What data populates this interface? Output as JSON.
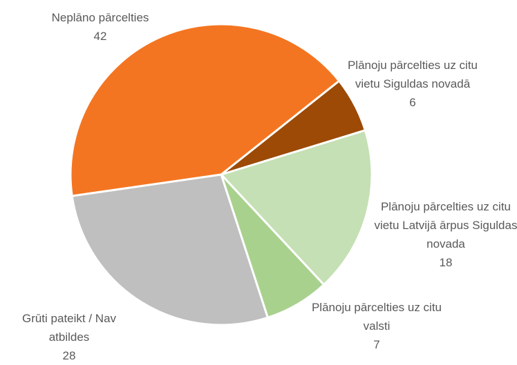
{
  "chart_data": {
    "type": "pie",
    "categories": [
      "Neplāno pārcelties",
      "Plānoju pārcelties uz citu vietu Siguldas novadā",
      "Plānoju pārcelties uz citu vietu Latvijā ārpus Siguldas novada",
      "Plānoju pārcelties uz citu valsti",
      "Grūti pateikt / Nav atbildes"
    ],
    "values": [
      42,
      6,
      18,
      7,
      28
    ],
    "colors": [
      "#f47521",
      "#9c4a06",
      "#c5e0b4",
      "#a9d18e",
      "#bfbfbf"
    ]
  }
}
